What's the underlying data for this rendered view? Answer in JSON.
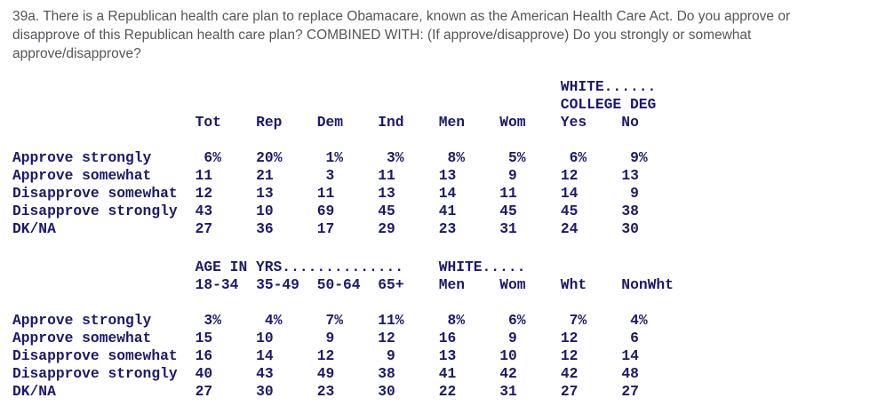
{
  "colors": {
    "table_text": "#1c196d",
    "question_text": "#55565a",
    "background": "#ffffff"
  },
  "question": {
    "number": "39a.",
    "lines": [
      "39a. There is a Republican health care plan to replace Obamacare, known as the American Health Care Act. Do you approve or",
      "disapprove of this Republican health care plan? COMBINED WITH: (If approve/disapprove) Do you strongly or somewhat",
      "approve/disapprove?"
    ]
  },
  "table1": {
    "group1": "WHITE......",
    "group2": "COLLEGE DEG",
    "columns": [
      "Tot",
      "Rep",
      "Dem",
      "Ind",
      "Men",
      "Wom",
      "Yes",
      "No"
    ],
    "rows": [
      {
        "label": "Approve strongly",
        "suffix": "%",
        "values": [
          "6",
          "20",
          "1",
          "3",
          "8",
          "5",
          "6",
          "9"
        ]
      },
      {
        "label": "Approve somewhat",
        "suffix": "",
        "values": [
          "11",
          "21",
          "3",
          "11",
          "13",
          "9",
          "12",
          "13"
        ]
      },
      {
        "label": "Disapprove somewhat",
        "suffix": "",
        "values": [
          "12",
          "13",
          "11",
          "13",
          "14",
          "11",
          "14",
          "9"
        ]
      },
      {
        "label": "Disapprove strongly",
        "suffix": "",
        "values": [
          "43",
          "10",
          "69",
          "45",
          "41",
          "45",
          "45",
          "38"
        ]
      },
      {
        "label": "DK/NA",
        "suffix": "",
        "values": [
          "27",
          "36",
          "17",
          "29",
          "23",
          "31",
          "24",
          "30"
        ]
      }
    ]
  },
  "table2": {
    "group_age": "AGE IN YRS..............",
    "group_white": "WHITE.....",
    "columns": [
      "18-34",
      "35-49",
      "50-64",
      "65+",
      "Men",
      "Wom",
      "Wht",
      "NonWht"
    ],
    "rows": [
      {
        "label": "Approve strongly",
        "suffix": "%",
        "values": [
          "3",
          "4",
          "7",
          "11",
          "8",
          "6",
          "7",
          "4"
        ]
      },
      {
        "label": "Approve somewhat",
        "suffix": "",
        "values": [
          "15",
          "10",
          "9",
          "12",
          "16",
          "9",
          "12",
          "6"
        ]
      },
      {
        "label": "Disapprove somewhat",
        "suffix": "",
        "values": [
          "16",
          "14",
          "12",
          "9",
          "13",
          "10",
          "12",
          "14"
        ]
      },
      {
        "label": "Disapprove strongly",
        "suffix": "",
        "values": [
          "40",
          "43",
          "49",
          "38",
          "41",
          "42",
          "42",
          "48"
        ]
      },
      {
        "label": "DK/NA",
        "suffix": "",
        "values": [
          "27",
          "30",
          "23",
          "30",
          "22",
          "31",
          "27",
          "27"
        ]
      }
    ]
  }
}
